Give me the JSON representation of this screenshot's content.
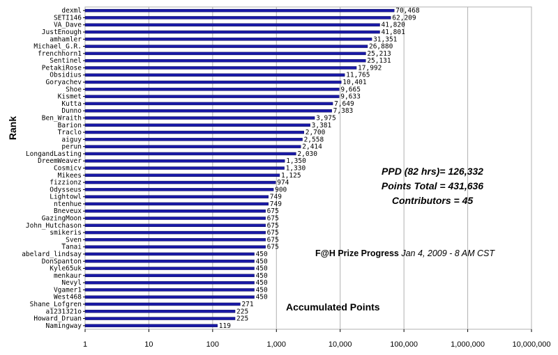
{
  "chart_data": {
    "type": "bar",
    "orientation": "horizontal",
    "scale": "log",
    "xlim": [
      1,
      10000000
    ],
    "x_ticks": [
      "1",
      "10",
      "100",
      "1,000",
      "10,000",
      "100,000",
      "1,000,000",
      "10,000,000"
    ],
    "ylabel": "Rank",
    "bar_color": "#1a1aa6",
    "grid": "vertical",
    "categories": [
      "dexml",
      "SETI146",
      "VA_Dave",
      "JustEnough",
      "amhamler",
      "Michael_G.R.",
      "frenchhorn1",
      "Sentinel",
      "PetakiRose",
      "Obsidius",
      "Goryachev",
      "Shoe",
      "Kismet",
      "Kutta",
      "Dunno",
      "Ben_Wraith",
      "Barion",
      "Traclo",
      "aiguy",
      "perun",
      "LongandLasting",
      "DreemWeaver",
      "Cosmicv",
      "Mikees",
      "fizzionz",
      "Odysseus",
      "Lightowl",
      "ntenhue",
      "Bneveux",
      "GazingMoon",
      "John_Hutchason",
      "smikeris",
      "_Sven",
      "Tanai",
      "abelard_lindsay",
      "DonSpanton",
      "Kyle65uk",
      "menkaur",
      "Nevyl",
      "Vgamer1",
      "West468",
      "Shane_Lofgren",
      "a1231321o",
      "Howard_Druan",
      "Namingway"
    ],
    "values": [
      70468,
      62209,
      41820,
      41801,
      31351,
      26880,
      25213,
      25131,
      17992,
      11765,
      10401,
      9665,
      9633,
      7649,
      7383,
      3975,
      3381,
      2700,
      2558,
      2414,
      2030,
      1350,
      1330,
      1125,
      974,
      900,
      749,
      749,
      675,
      675,
      675,
      675,
      675,
      675,
      450,
      450,
      450,
      450,
      450,
      450,
      450,
      271,
      225,
      225,
      119
    ],
    "value_labels": [
      "70,468",
      "62,209",
      "41,820",
      "41,801",
      "31,351",
      "26,880",
      "25,213",
      "25,131",
      "17,992",
      "11,765",
      "10,401",
      "9,665",
      "9,633",
      "7,649",
      "7,383",
      "3,975",
      "3,381",
      "2,700",
      "2,558",
      "2,414",
      "2,030",
      "1,350",
      "1,330",
      "1,125",
      "974",
      "900",
      "749",
      "749",
      "675",
      "675",
      "675",
      "675",
      "675",
      "675",
      "450",
      "450",
      "450",
      "450",
      "450",
      "450",
      "450",
      "271",
      "225",
      "225",
      "119"
    ],
    "annotations": {
      "ppd": "PPD (82 hrs)= 126,332",
      "points_total": "Points Total = 431,636",
      "contributors": "Contributors = 45",
      "title_bold": "F@H Prize Progress",
      "title_date": "Jan 4, 2009 - 8 AM CST",
      "subtitle": "Accumulated Points"
    }
  }
}
